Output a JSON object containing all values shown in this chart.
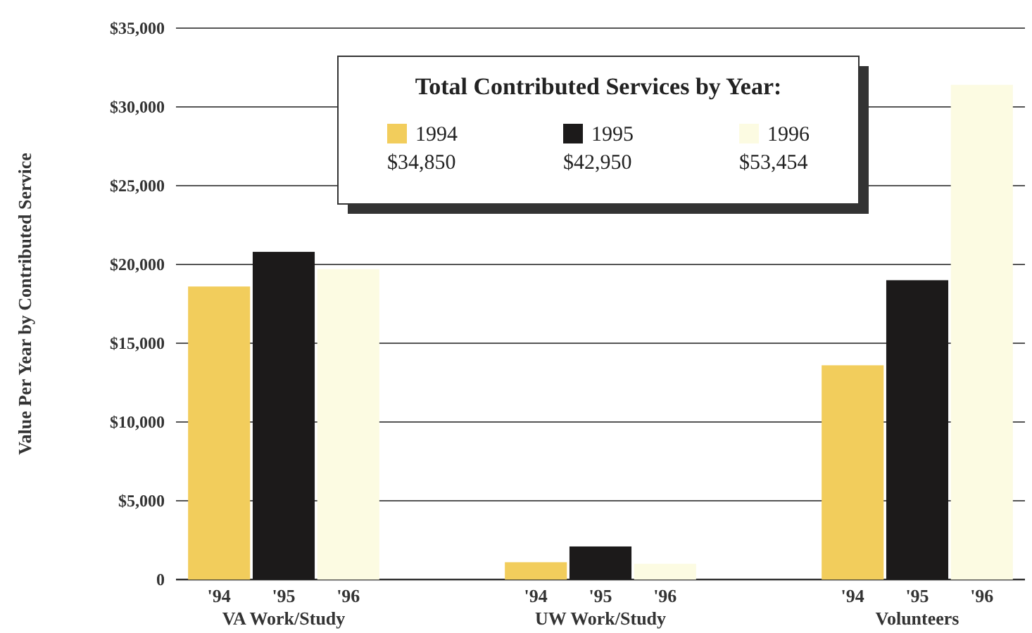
{
  "chart_data": {
    "type": "bar",
    "ylabel": "Value Per Year by Contributed Service",
    "legend_title": "Total Contributed Services by Year:",
    "categories": [
      "VA Work/Study",
      "UW Work/Study",
      "Volunteers"
    ],
    "series": [
      {
        "name": "1994",
        "color": "#f2cd5c",
        "values": [
          18600,
          1100,
          13600
        ]
      },
      {
        "name": "1995",
        "color": "#1c1a1a",
        "values": [
          20800,
          2100,
          19000
        ]
      },
      {
        "name": "1996",
        "color": "#fcfbe2",
        "values": [
          19700,
          1000,
          31400
        ]
      }
    ],
    "annotations": [
      "$34,850",
      "$42,950",
      "$53,454",
      "'94",
      "'95",
      "'96"
    ],
    "ylim": [
      0,
      35000
    ],
    "yticks": [
      {
        "value": 0,
        "label": "0"
      },
      {
        "value": 5000,
        "label": "$5,000"
      },
      {
        "value": 10000,
        "label": "$10,000"
      },
      {
        "value": 15000,
        "label": "$15,000"
      },
      {
        "value": 20000,
        "label": "$20,000"
      },
      {
        "value": 25000,
        "label": "$25,000"
      },
      {
        "value": 30000,
        "label": "$30,000"
      },
      {
        "value": 35000,
        "label": "$35,000"
      }
    ],
    "grid": "y",
    "legend": "top"
  }
}
